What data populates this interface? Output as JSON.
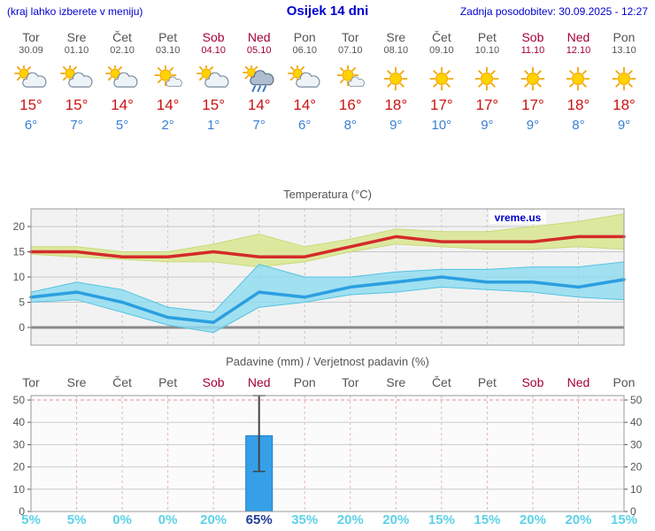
{
  "header": {
    "menu_hint": "(kraj lahko izberete v meniju)",
    "title": "Osijek 14 dni",
    "last_update": "Zadnja posodobitev: 30.09.2025 - 12:27"
  },
  "watermark": "vreme.us",
  "colors": {
    "header_blue": "#0000cc",
    "weekday_gray": "#555555",
    "weekend_red": "#a50034",
    "tmax_red": "#cc1111",
    "tmin_blue": "#3a7fd5",
    "percent_cyan": "#5cd2e6",
    "percent_highlight": "#1f3e99",
    "bar_fill": "#35a0e8",
    "bar_stroke": "#1b7ec9"
  },
  "days": [
    {
      "name": "Tor",
      "date": "30.09",
      "weekend": false,
      "icon": "sun-cloud",
      "tmax": "15°",
      "tmin": "6°"
    },
    {
      "name": "Sre",
      "date": "01.10",
      "weekend": false,
      "icon": "sun-cloud",
      "tmax": "15°",
      "tmin": "7°"
    },
    {
      "name": "Čet",
      "date": "02.10",
      "weekend": false,
      "icon": "sun-cloud",
      "tmax": "14°",
      "tmin": "5°"
    },
    {
      "name": "Pet",
      "date": "03.10",
      "weekend": false,
      "icon": "sun-small-cloud",
      "tmax": "14°",
      "tmin": "2°"
    },
    {
      "name": "Sob",
      "date": "04.10",
      "weekend": true,
      "icon": "sun-cloud",
      "tmax": "15°",
      "tmin": "1°"
    },
    {
      "name": "Ned",
      "date": "05.10",
      "weekend": true,
      "icon": "rain",
      "tmax": "14°",
      "tmin": "7°"
    },
    {
      "name": "Pon",
      "date": "06.10",
      "weekend": false,
      "icon": "sun-cloud",
      "tmax": "14°",
      "tmin": "6°"
    },
    {
      "name": "Tor",
      "date": "07.10",
      "weekend": false,
      "icon": "sun-small-cloud",
      "tmax": "16°",
      "tmin": "8°"
    },
    {
      "name": "Sre",
      "date": "08.10",
      "weekend": false,
      "icon": "sunny",
      "tmax": "18°",
      "tmin": "9°"
    },
    {
      "name": "Čet",
      "date": "09.10",
      "weekend": false,
      "icon": "sunny",
      "tmax": "17°",
      "tmin": "10°"
    },
    {
      "name": "Pet",
      "date": "10.10",
      "weekend": false,
      "icon": "sunny",
      "tmax": "17°",
      "tmin": "9°"
    },
    {
      "name": "Sob",
      "date": "11.10",
      "weekend": true,
      "icon": "sunny",
      "tmax": "17°",
      "tmin": "9°"
    },
    {
      "name": "Ned",
      "date": "12.10",
      "weekend": true,
      "icon": "sunny",
      "tmax": "18°",
      "tmin": "8°"
    },
    {
      "name": "Pon",
      "date": "13.10",
      "weekend": false,
      "icon": "sunny",
      "tmax": "18°",
      "tmin": "9°"
    }
  ],
  "chart_data": [
    {
      "type": "line",
      "title": "Temperatura (°C)",
      "categories": [
        "Tor",
        "Sre",
        "Čet",
        "Pet",
        "Sob",
        "Ned",
        "Pon",
        "Tor",
        "Sre",
        "Čet",
        "Pet",
        "Sob",
        "Ned",
        "Pon"
      ],
      "ylim": [
        -3.5,
        23.5
      ],
      "yticks": [
        0,
        5,
        10,
        15,
        20
      ],
      "series": [
        {
          "name": "max-temperatura",
          "color": "#d42a2a",
          "band_color": "#dde89f",
          "band_edge": "#c9da77",
          "values": [
            15,
            15,
            14,
            14,
            15,
            14,
            14,
            16,
            18,
            17,
            17,
            17,
            18,
            18
          ],
          "band_high": [
            16,
            16,
            15,
            15,
            16.5,
            18.5,
            16,
            17.5,
            19.5,
            19,
            19,
            20,
            21,
            22.5
          ],
          "band_low": [
            14.5,
            14,
            13.5,
            13,
            13,
            12,
            13,
            15,
            16.5,
            16,
            15.5,
            15.5,
            16,
            15.5
          ]
        },
        {
          "name": "min-temperatura",
          "color": "#2b9fe0",
          "band_color": "#8edcf0",
          "band_edge": "#54c3e0",
          "values": [
            6,
            7,
            5,
            2,
            1,
            7,
            6,
            8,
            9,
            10,
            9,
            9,
            8,
            9.5
          ],
          "band_high": [
            7,
            9,
            7.5,
            4,
            3,
            12.5,
            10,
            10,
            11,
            11.5,
            11.5,
            12,
            12,
            13
          ],
          "band_low": [
            5,
            5.5,
            3,
            0.5,
            -1,
            4,
            5,
            6.5,
            7,
            8,
            7.5,
            7,
            6,
            5.5
          ]
        }
      ]
    },
    {
      "type": "bar",
      "title": "Padavine (mm) / Verjetnost padavin (%)",
      "categories": [
        "Tor",
        "Sre",
        "Čet",
        "Pet",
        "Sob",
        "Ned",
        "Pon",
        "Tor",
        "Sre",
        "Čet",
        "Pet",
        "Sob",
        "Ned",
        "Pon"
      ],
      "weekend": [
        false,
        false,
        false,
        false,
        true,
        true,
        false,
        false,
        false,
        false,
        false,
        true,
        true,
        false
      ],
      "ylim": [
        0,
        52
      ],
      "yticks": [
        0,
        10,
        20,
        30,
        40,
        50
      ],
      "values": [
        0,
        0,
        0,
        0,
        0,
        34,
        0,
        0,
        0,
        0,
        0,
        0,
        0,
        0
      ],
      "whiskers": [
        null,
        null,
        null,
        null,
        null,
        {
          "low": 18,
          "high": 52
        },
        null,
        null,
        null,
        null,
        null,
        null,
        null,
        null
      ],
      "probabilities": [
        "5%",
        "5%",
        "0%",
        "0%",
        "20%",
        "65%",
        "35%",
        "20%",
        "20%",
        "15%",
        "15%",
        "20%",
        "20%",
        "15%"
      ],
      "highlight_index": 5
    }
  ]
}
